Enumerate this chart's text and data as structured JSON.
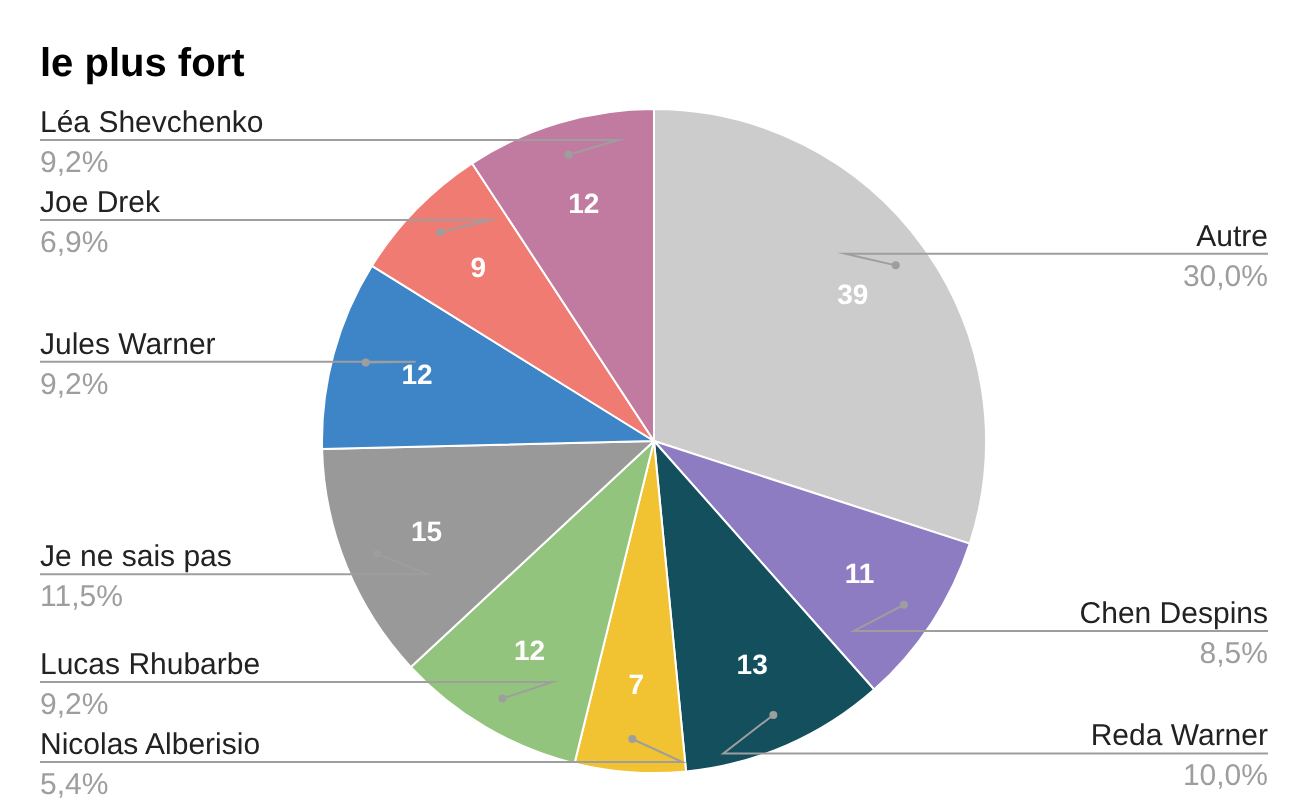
{
  "chart_data": {
    "type": "pie",
    "title": "le plus fort",
    "categories": [
      "Autre",
      "Chen Despins",
      "Reda Warner",
      "Nicolas Alberisio",
      "Lucas Rhubarbe",
      "Je ne sais pas",
      "Jules Warner",
      "Joe Drek",
      "Léa Shevchenko"
    ],
    "values": [
      39,
      11,
      13,
      7,
      12,
      15,
      12,
      9,
      12
    ],
    "colors": [
      "#cccccc",
      "#8e7cc3",
      "#134f5c",
      "#f1c232",
      "#93c47d",
      "#999999",
      "#3d85c6",
      "#f07b72",
      "#c27ba0"
    ],
    "annotations": [
      {
        "text": "30,0%",
        "x": "Autre"
      },
      {
        "text": "8,5%",
        "x": "Chen Despins"
      },
      {
        "text": "10,0%",
        "x": "Reda Warner"
      },
      {
        "text": "5,4%",
        "x": "Nicolas Alberisio"
      },
      {
        "text": "9,2%",
        "x": "Lucas Rhubarbe"
      },
      {
        "text": "11,5%",
        "x": "Je ne sais pas"
      },
      {
        "text": "9,2%",
        "x": "Jules Warner"
      },
      {
        "text": "6,9%",
        "x": "Joe Drek"
      },
      {
        "text": "9,2%",
        "x": "Léa Shevchenko"
      }
    ],
    "data_labels": true,
    "legend": false
  }
}
